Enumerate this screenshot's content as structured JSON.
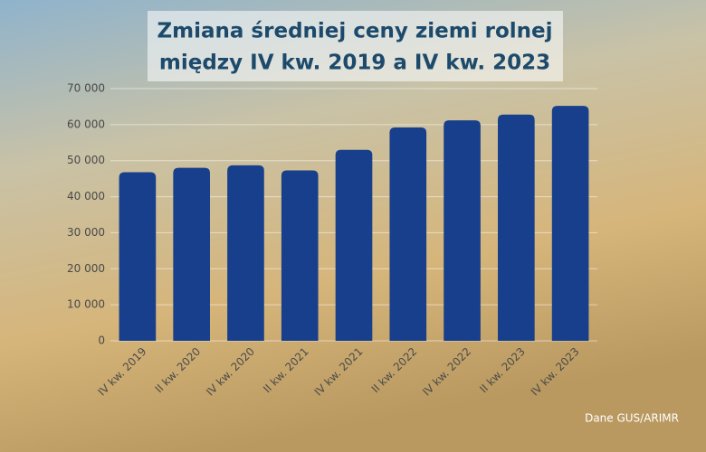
{
  "chart_data": {
    "type": "bar",
    "title_lines": [
      "Zmiana średniej ceny ziemi rolnej",
      "między IV kw. 2019 a IV kw. 2023"
    ],
    "categories": [
      "IV kw. 2019",
      "II kw. 2020",
      "IV kw. 2020",
      "II kw. 2021",
      "IV kw. 2021",
      "II kw. 2022",
      "IV kw. 2022",
      "II kw. 2023",
      "IV kw. 2023"
    ],
    "values": [
      46800,
      48000,
      48700,
      47300,
      53000,
      59200,
      61200,
      62800,
      65200
    ],
    "color": "#173f8c",
    "ylim": [
      0,
      70000
    ],
    "yticks": [
      0,
      {
        "value": 10000,
        "label": "10 000"
      },
      {
        "value": 20000,
        "label": "20 000"
      },
      {
        "value": 30000,
        "label": "30 000"
      },
      {
        "value": 40000,
        "label": "40 000"
      },
      {
        "value": 50000,
        "label": "50 000"
      },
      {
        "value": 60000,
        "label": "60 000"
      },
      {
        "value": 70000,
        "label": "70 000"
      }
    ],
    "grid": true,
    "source": "Dane GUS/ARIMR"
  }
}
